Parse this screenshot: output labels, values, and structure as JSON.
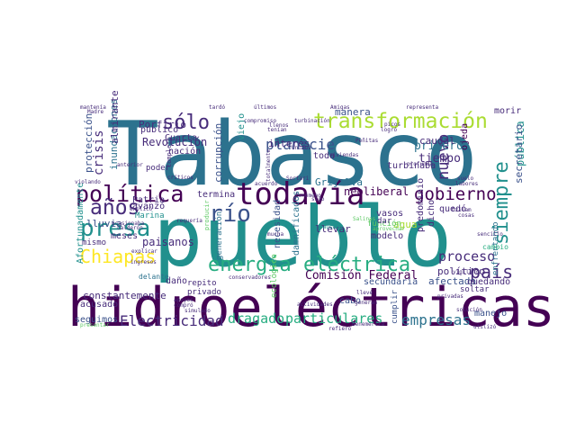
{
  "word_cloud": {
    "colors": {
      "dark_purple": "#440154",
      "indigo": "#472c7a",
      "blue": "#3b528b",
      "steel_blue": "#2c728e",
      "teal": "#21908d",
      "sea_green": "#27ad81",
      "green": "#5cc863",
      "lime": "#aadc32",
      "yellow": "#fde725"
    },
    "words": [
      {
        "text": "pueblo"
      },
      {
        "text": "Tabasco"
      },
      {
        "text": "hidroeléctricas"
      },
      {
        "text": "todavía"
      },
      {
        "text": "transformación"
      },
      {
        "text": "política"
      },
      {
        "text": "energía eléctrica"
      },
      {
        "text": "presa"
      },
      {
        "text": "Chiapas"
      },
      {
        "text": "años"
      },
      {
        "text": "sólo"
      },
      {
        "text": "planicie"
      },
      {
        "text": "río"
      },
      {
        "text": "gobierno"
      },
      {
        "text": "siempre"
      },
      {
        "text": "país"
      },
      {
        "text": "proceso"
      },
      {
        "text": "nuevo"
      },
      {
        "text": "empresas"
      },
      {
        "text": "Electricidad"
      },
      {
        "text": "dragado"
      },
      {
        "text": "particulares"
      },
      {
        "text": "Comisión Federal"
      },
      {
        "text": "crisis"
      },
      {
        "text": "manera"
      },
      {
        "text": "interés"
      },
      {
        "text": "primero"
      },
      {
        "text": "tiempo"
      },
      {
        "text": "pública"
      },
      {
        "text": "neoliberal"
      },
      {
        "text": "lluvia"
      },
      {
        "text": "paisanos"
      },
      {
        "text": "Revolución"
      },
      {
        "text": "Porfirio"
      },
      {
        "text": "protección"
      },
      {
        "text": "inundaciones"
      },
      {
        "text": "almirante"
      },
      {
        "text": "corrupción"
      },
      {
        "text": "Grijalva"
      },
      {
        "text": "caudal"
      },
      {
        "text": "secretario"
      },
      {
        "text": "morir"
      },
      {
        "text": "ojeda"
      },
      {
        "text": "turbinaba"
      },
      {
        "text": "toda"
      },
      {
        "text": "constantemente"
      },
      {
        "text": "acusado"
      },
      {
        "text": "seguimos"
      },
      {
        "text": "privado"
      },
      {
        "text": "repito"
      },
      {
        "text": "afectado"
      },
      {
        "text": "cabo"
      },
      {
        "text": "secundaria"
      },
      {
        "text": "quedando"
      },
      {
        "text": "agua"
      },
      {
        "text": "llevar"
      },
      {
        "text": "modelo"
      },
      {
        "text": "necesidad"
      },
      {
        "text": "damnificados"
      },
      {
        "text": "generación"
      },
      {
        "text": "ecológico"
      },
      {
        "text": "daño"
      },
      {
        "text": "meses"
      },
      {
        "text": "mismo"
      },
      {
        "text": "Patria"
      },
      {
        "text": "avanzó"
      },
      {
        "text": "Marina"
      },
      {
        "text": "Afortunadamente"
      },
      {
        "text": "termina"
      },
      {
        "text": "nación"
      },
      {
        "text": "Cuarta"
      },
      {
        "text": "poder"
      },
      {
        "text": "público"
      },
      {
        "text": "viejo"
      },
      {
        "text": "político"
      },
      {
        "text": "función"
      },
      {
        "text": "vasos"
      },
      {
        "text": "dar"
      },
      {
        "text": "dicho"
      },
      {
        "text": "quedó"
      },
      {
        "text": "cumplir"
      },
      {
        "text": "predominio"
      },
      {
        "text": "enfrentando"
      },
      {
        "text": "cambio"
      },
      {
        "text": "manejo"
      },
      {
        "text": "soltar"
      },
      {
        "text": "delante"
      },
      {
        "text": "mantenía"
      },
      {
        "text": "Madre"
      },
      {
        "text": "tardó"
      },
      {
        "text": "últimos"
      },
      {
        "text": "Amigas"
      },
      {
        "text": "representa"
      },
      {
        "text": "compromiso"
      },
      {
        "text": "turbinación"
      },
      {
        "text": "producir"
      },
      {
        "text": "requería"
      },
      {
        "text": "conservadores"
      },
      {
        "text": "actividades"
      },
      {
        "text": "apoyos"
      },
      {
        "text": "compró"
      },
      {
        "text": "simulado"
      },
      {
        "text": "presentar"
      },
      {
        "text": "llevé"
      },
      {
        "text": "privadas"
      },
      {
        "text": "generan"
      },
      {
        "text": "explicó"
      },
      {
        "text": "utilizó"
      },
      {
        "text": "solución"
      },
      {
        "text": "Dzilam"
      },
      {
        "text": "cosas"
      },
      {
        "text": "logró"
      },
      {
        "text": "suelo"
      },
      {
        "text": "labores"
      },
      {
        "text": "sencillo"
      },
      {
        "text": "profunda"
      },
      {
        "text": "picos"
      },
      {
        "text": "llenos"
      },
      {
        "text": "tenían"
      },
      {
        "text": "Peñitas"
      },
      {
        "text": "viviendas"
      },
      {
        "text": "ocasionaba"
      },
      {
        "text": "calderón"
      },
      {
        "text": "anterior"
      },
      {
        "text": "críticos"
      },
      {
        "text": "violando"
      },
      {
        "text": "ingresos"
      },
      {
        "text": "Sortari"
      },
      {
        "text": "Benemérita"
      },
      {
        "text": "Unidos"
      },
      {
        "text": "Salinas"
      },
      {
        "text": "aprovechar"
      },
      {
        "text": "causaba"
      },
      {
        "text": "refiero"
      },
      {
        "text": "fenómeno"
      },
      {
        "text": "sigo"
      },
      {
        "text": "mucha"
      },
      {
        "text": "acuerdo"
      },
      {
        "text": "explicar"
      },
      {
        "text": "vigilancia"
      },
      {
        "text": "completo"
      },
      {
        "text": "totalmente"
      }
    ]
  }
}
